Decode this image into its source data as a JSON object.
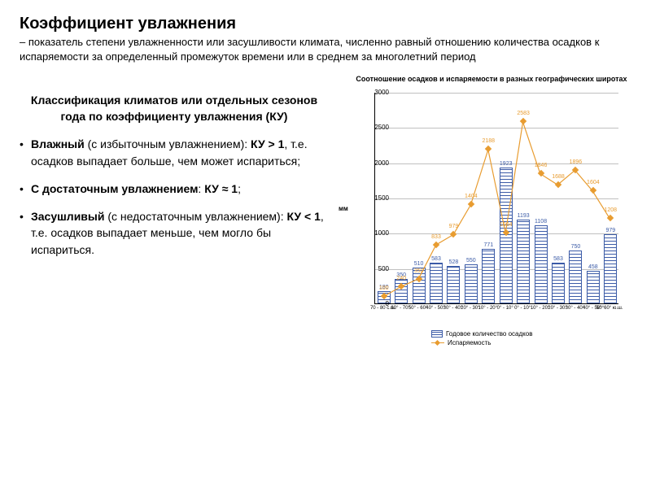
{
  "header": {
    "title": "Коэффициент увлажнения",
    "subtitle_dash": "–",
    "subtitle": "показатель степени увлажненности или засушливости климата, численно равный отношению количества осадков к испаряемости за определенный промежуток времени или в среднем за многолетний период"
  },
  "left": {
    "heading": "Классификация климатов или отдельных сезонов года по коэффициенту увлажнения (КУ)",
    "items": [
      {
        "b1": "Влажный",
        "rest1": " (с избыточным увлажнением): ",
        "b2": "КУ > 1",
        "rest2": ", т.е. осадков выпадает больше, чем может испариться;"
      },
      {
        "b1": "С достаточным увлажнением",
        "rest1": ": ",
        "b2": "КУ ≈ 1",
        "rest2": ";"
      },
      {
        "b1": "Засушливый",
        "rest1": " (с недостаточным увлажнением): ",
        "b2": "КУ < 1",
        "rest2": ", т.е. осадков выпадает меньше, чем могло бы испариться."
      }
    ]
  },
  "chart": {
    "title": "Соотношение осадков и испаряемости в разных географических широтах",
    "type": "bar+line",
    "ylabel": "мм",
    "ymax": 3000,
    "ytick_step": 500,
    "yticks": [
      0,
      500,
      1000,
      1500,
      2000,
      2500,
      3000
    ],
    "categories": [
      "70 - 80 с.ш.",
      "60° - 70°",
      "50° - 60°",
      "40° - 50°",
      "30° - 40°",
      "20° - 30°",
      "10° - 20°",
      "0° - 10°",
      "0° - 10°",
      "10° - 20°",
      "20° - 30°",
      "30° - 40°",
      "40° - 50°",
      "50°60° ю.ш."
    ],
    "bar_values": [
      180,
      350,
      510,
      583,
      528,
      550,
      771,
      1923,
      1193,
      1108,
      583,
      750,
      458,
      979
    ],
    "line_values": [
      100,
      240,
      350,
      833,
      979,
      1404,
      2188,
      1004,
      2583,
      1846,
      1688,
      1896,
      1604,
      1208
    ],
    "bar_color": "#3b5ba7",
    "line_color": "#e89c30",
    "grid_color": "#c0c0c0",
    "background_color": "#ffffff",
    "legend": {
      "bar": "Годовое количество осадков",
      "line": "Испаряемость"
    }
  }
}
